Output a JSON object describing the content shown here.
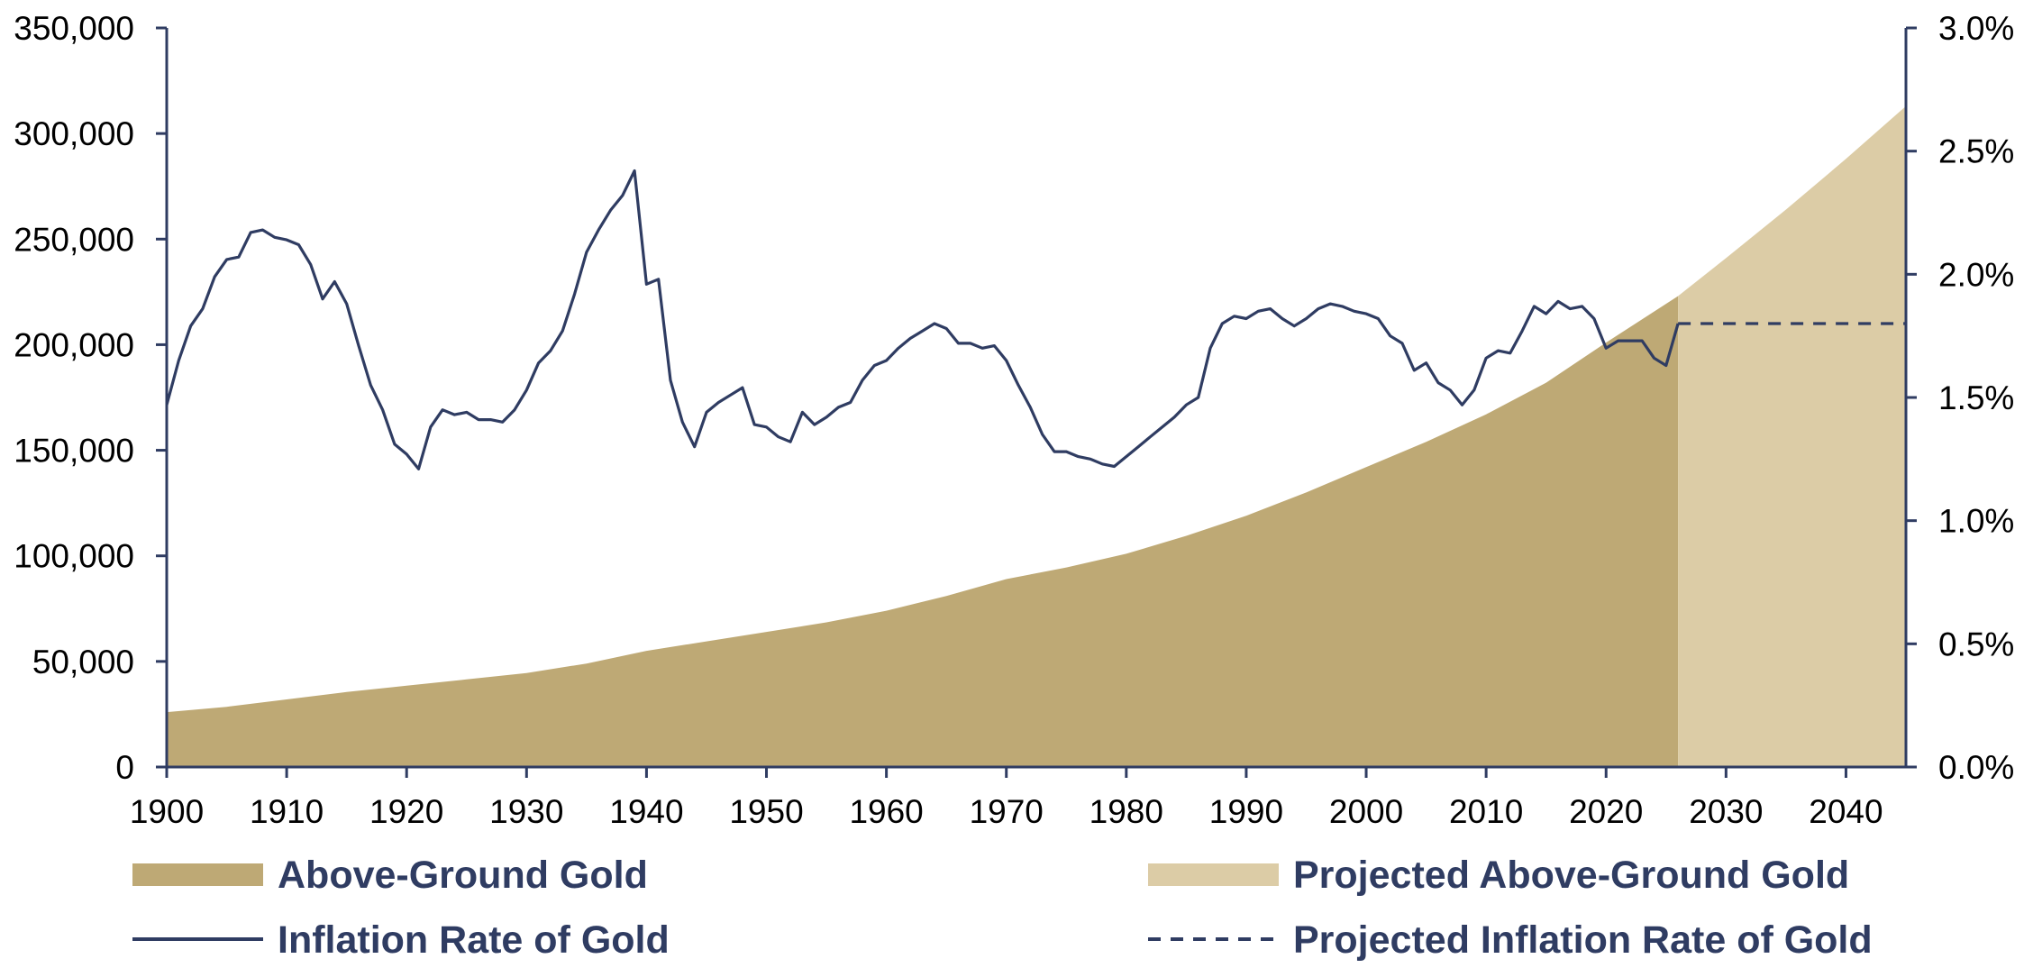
{
  "chart_data": {
    "type": "area",
    "xlim": [
      1900,
      2045
    ],
    "x_ticks": [
      1900,
      1910,
      1920,
      1930,
      1940,
      1950,
      1960,
      1970,
      1980,
      1990,
      2000,
      2010,
      2020,
      2030,
      2040
    ],
    "y_left": {
      "range": [
        0,
        350000
      ],
      "ticks": [
        0,
        50000,
        100000,
        150000,
        200000,
        250000,
        300000,
        350000
      ],
      "tick_labels": [
        "0",
        "50,000",
        "100,000",
        "150,000",
        "200,000",
        "250,000",
        "300,000",
        "350,000"
      ]
    },
    "y_right": {
      "range": [
        0,
        3.0
      ],
      "ticks": [
        0,
        0.5,
        1.0,
        1.5,
        2.0,
        2.5,
        3.0
      ],
      "tick_labels": [
        "0.0%",
        "0.5%",
        "1.0%",
        "1.5%",
        "2.0%",
        "2.5%",
        "3.0%"
      ]
    },
    "grid": false,
    "legend_position": "bottom",
    "series": [
      {
        "name": "Above-Ground Gold",
        "kind": "area",
        "axis": "left",
        "color": "#bea975",
        "x": [
          1900,
          1905,
          1910,
          1915,
          1920,
          1925,
          1930,
          1935,
          1940,
          1945,
          1950,
          1955,
          1960,
          1965,
          1970,
          1975,
          1980,
          1985,
          1990,
          1995,
          2000,
          2005,
          2010,
          2015,
          2020,
          2026
        ],
        "values": [
          26000,
          28500,
          32000,
          35500,
          38500,
          41500,
          44500,
          49000,
          55000,
          59500,
          64000,
          68500,
          74000,
          81000,
          89000,
          94500,
          101000,
          109500,
          119000,
          130000,
          142000,
          154000,
          167000,
          182000,
          201000,
          223000
        ]
      },
      {
        "name": "Projected Above-Ground Gold",
        "kind": "area",
        "axis": "left",
        "color": "#dccca6",
        "x": [
          2026,
          2030,
          2035,
          2040,
          2045
        ],
        "values": [
          223000,
          241000,
          264000,
          288000,
          313000
        ]
      },
      {
        "name": "Inflation Rate of Gold",
        "kind": "line",
        "axis": "right",
        "color": "#2f3c62",
        "x": [
          1900,
          1901,
          1902,
          1903,
          1904,
          1905,
          1906,
          1907,
          1908,
          1909,
          1910,
          1911,
          1912,
          1913,
          1914,
          1915,
          1916,
          1917,
          1918,
          1919,
          1920,
          1921,
          1922,
          1923,
          1924,
          1925,
          1926,
          1927,
          1928,
          1929,
          1930,
          1931,
          1932,
          1933,
          1934,
          1935,
          1936,
          1937,
          1938,
          1939,
          1940,
          1941,
          1942,
          1943,
          1944,
          1945,
          1946,
          1947,
          1948,
          1949,
          1950,
          1951,
          1952,
          1953,
          1954,
          1955,
          1956,
          1957,
          1958,
          1959,
          1960,
          1961,
          1962,
          1963,
          1964,
          1965,
          1966,
          1967,
          1968,
          1969,
          1970,
          1971,
          1972,
          1973,
          1974,
          1975,
          1976,
          1977,
          1978,
          1979,
          1980,
          1981,
          1982,
          1983,
          1984,
          1985,
          1986,
          1987,
          1988,
          1989,
          1990,
          1991,
          1992,
          1993,
          1994,
          1995,
          1996,
          1997,
          1998,
          1999,
          2000,
          2001,
          2002,
          2003,
          2004,
          2005,
          2006,
          2007,
          2008,
          2009,
          2010,
          2011,
          2012,
          2013,
          2014,
          2015,
          2016,
          2017,
          2018,
          2019,
          2020,
          2021,
          2022,
          2023,
          2024,
          2025,
          2026
        ],
        "values": [
          1.47,
          1.65,
          1.79,
          1.86,
          1.99,
          2.06,
          2.07,
          2.17,
          2.18,
          2.15,
          2.14,
          2.12,
          2.04,
          1.9,
          1.97,
          1.88,
          1.71,
          1.55,
          1.45,
          1.31,
          1.27,
          1.21,
          1.38,
          1.45,
          1.43,
          1.44,
          1.41,
          1.41,
          1.4,
          1.45,
          1.53,
          1.64,
          1.69,
          1.77,
          1.92,
          2.09,
          2.18,
          2.26,
          2.32,
          2.42,
          1.96,
          1.98,
          1.57,
          1.4,
          1.3,
          1.44,
          1.48,
          1.51,
          1.54,
          1.39,
          1.38,
          1.34,
          1.32,
          1.44,
          1.39,
          1.42,
          1.46,
          1.48,
          1.57,
          1.63,
          1.65,
          1.7,
          1.74,
          1.77,
          1.8,
          1.78,
          1.72,
          1.72,
          1.7,
          1.71,
          1.65,
          1.55,
          1.46,
          1.35,
          1.28,
          1.28,
          1.26,
          1.25,
          1.23,
          1.22,
          1.26,
          1.3,
          1.34,
          1.38,
          1.42,
          1.47,
          1.5,
          1.7,
          1.8,
          1.83,
          1.82,
          1.85,
          1.86,
          1.82,
          1.79,
          1.82,
          1.86,
          1.88,
          1.87,
          1.85,
          1.84,
          1.82,
          1.75,
          1.72,
          1.61,
          1.64,
          1.56,
          1.53,
          1.47,
          1.53,
          1.66,
          1.69,
          1.68,
          1.77,
          1.87,
          1.84,
          1.89,
          1.86,
          1.87,
          1.82,
          1.7,
          1.73,
          1.73,
          1.73,
          1.66,
          1.63,
          1.8
        ]
      },
      {
        "name": "Projected Inflation Rate of Gold",
        "kind": "dashed-line",
        "axis": "right",
        "color": "#2f3c62",
        "x": [
          2026,
          2045
        ],
        "values": [
          1.8,
          1.8
        ]
      }
    ]
  }
}
